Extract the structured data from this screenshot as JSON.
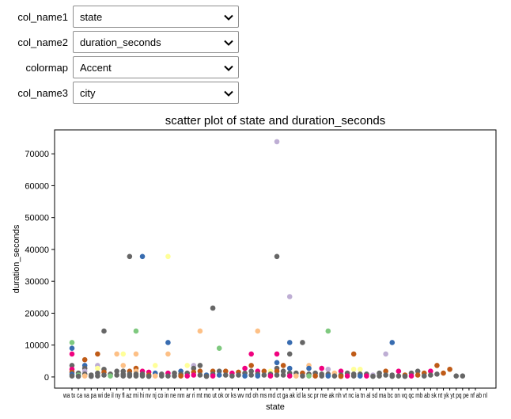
{
  "controls": [
    {
      "label": "col_name1",
      "value": "state"
    },
    {
      "label": "col_name2",
      "value": "duration_seconds"
    },
    {
      "label": "colormap",
      "value": "Accent"
    },
    {
      "label": "col_name3",
      "value": "city"
    }
  ],
  "chart_data": {
    "type": "scatter",
    "title": "scatter plot of state and duration_seconds",
    "xlabel": "state",
    "ylabel": "duration_seconds",
    "ylim": [
      -3500,
      77500
    ],
    "yticks": [
      0,
      10000,
      20000,
      30000,
      40000,
      50000,
      60000,
      70000
    ],
    "ytick_labels": [
      "0",
      "10000",
      "20000",
      "30000",
      "40000",
      "50000",
      "60000",
      "70000"
    ],
    "grid": false,
    "colormap": "Accent",
    "categories": [
      "wa",
      "tx",
      "ca",
      "va",
      "pa",
      "wi",
      "de",
      "il",
      "ny",
      "fl",
      "az",
      "mi",
      "hi",
      "nv",
      "nj",
      "co",
      "in",
      "ne",
      "nm",
      "ar",
      "ri",
      "mt",
      "mo",
      "ut",
      "ok",
      "or",
      "ks",
      "wv",
      "nd",
      "oh",
      "ms",
      "md",
      "ct",
      "ga",
      "ak",
      "id",
      "la",
      "sc",
      "pr",
      "me",
      "ak",
      "nh",
      "vt",
      "nc",
      "ia",
      "tn",
      "al",
      "sd",
      "ma",
      "bc",
      "on",
      "vq",
      "qc",
      "mb",
      "ab",
      "sk",
      "nt",
      "yk",
      "yt",
      "pq",
      "pe",
      "nf",
      "ab",
      "nl"
    ],
    "tick_text": "wa tx ca va pa wi de il ny fl az mi hi nv nj co in ne nm ar ri mt mo ut ok or ks wv nd oh ms md ct ga ak id la sc pr me ak nh vt nc ia tn al sd ma bc on vq qc mb ab sk nt yk yt pq pe nf ab nl",
    "points": [
      {
        "x": 0,
        "y": 10800,
        "c": "#7fc97f"
      },
      {
        "x": 0,
        "y": 9000,
        "c": "#386cb0"
      },
      {
        "x": 0,
        "y": 7200,
        "c": "#f0027f"
      },
      {
        "x": 0,
        "y": 3600,
        "c": "#666666"
      },
      {
        "x": 0,
        "y": 2400,
        "c": "#f0027f"
      },
      {
        "x": 0,
        "y": 1500,
        "c": "#bf5b17"
      },
      {
        "x": 0,
        "y": 900,
        "c": "#386cb0"
      },
      {
        "x": 0,
        "y": 300,
        "c": "#666666"
      },
      {
        "x": 1,
        "y": 1200,
        "c": "#666666"
      },
      {
        "x": 1,
        "y": 600,
        "c": "#7fc97f"
      },
      {
        "x": 1,
        "y": 200,
        "c": "#666666"
      },
      {
        "x": 2,
        "y": 5400,
        "c": "#bf5b17"
      },
      {
        "x": 2,
        "y": 3600,
        "c": "#386cb0"
      },
      {
        "x": 2,
        "y": 2700,
        "c": "#666666"
      },
      {
        "x": 2,
        "y": 1800,
        "c": "#beaed4"
      },
      {
        "x": 2,
        "y": 900,
        "c": "#666666"
      },
      {
        "x": 2,
        "y": 300,
        "c": "#fdc086"
      },
      {
        "x": 3,
        "y": 600,
        "c": "#666666"
      },
      {
        "x": 3,
        "y": 200,
        "c": "#666666"
      },
      {
        "x": 4,
        "y": 7200,
        "c": "#bf5b17"
      },
      {
        "x": 4,
        "y": 3600,
        "c": "#beaed4"
      },
      {
        "x": 4,
        "y": 2700,
        "c": "#ffff99"
      },
      {
        "x": 4,
        "y": 1200,
        "c": "#666666"
      },
      {
        "x": 4,
        "y": 300,
        "c": "#666666"
      },
      {
        "x": 5,
        "y": 14400,
        "c": "#666666"
      },
      {
        "x": 5,
        "y": 2400,
        "c": "#666666"
      },
      {
        "x": 5,
        "y": 1500,
        "c": "#bf5b17"
      },
      {
        "x": 5,
        "y": 600,
        "c": "#666666"
      },
      {
        "x": 6,
        "y": 900,
        "c": "#666666"
      },
      {
        "x": 6,
        "y": 300,
        "c": "#7fc97f"
      },
      {
        "x": 7,
        "y": 7200,
        "c": "#fdc086"
      },
      {
        "x": 7,
        "y": 1800,
        "c": "#666666"
      },
      {
        "x": 7,
        "y": 600,
        "c": "#666666"
      },
      {
        "x": 8,
        "y": 7200,
        "c": "#ffff99"
      },
      {
        "x": 8,
        "y": 3600,
        "c": "#fdc086"
      },
      {
        "x": 8,
        "y": 1800,
        "c": "#666666"
      },
      {
        "x": 8,
        "y": 900,
        "c": "#666666"
      },
      {
        "x": 8,
        "y": 300,
        "c": "#666666"
      },
      {
        "x": 9,
        "y": 37800,
        "c": "#666666"
      },
      {
        "x": 9,
        "y": 1800,
        "c": "#bf5b17"
      },
      {
        "x": 9,
        "y": 900,
        "c": "#666666"
      },
      {
        "x": 9,
        "y": 300,
        "c": "#666666"
      },
      {
        "x": 10,
        "y": 14400,
        "c": "#7fc97f"
      },
      {
        "x": 10,
        "y": 7200,
        "c": "#fdc086"
      },
      {
        "x": 10,
        "y": 2700,
        "c": "#bf5b17"
      },
      {
        "x": 10,
        "y": 1800,
        "c": "#fdc086"
      },
      {
        "x": 10,
        "y": 900,
        "c": "#666666"
      },
      {
        "x": 10,
        "y": 300,
        "c": "#666666"
      },
      {
        "x": 11,
        "y": 37800,
        "c": "#386cb0"
      },
      {
        "x": 11,
        "y": 1800,
        "c": "#f0027f"
      },
      {
        "x": 11,
        "y": 900,
        "c": "#666666"
      },
      {
        "x": 11,
        "y": 300,
        "c": "#666666"
      },
      {
        "x": 12,
        "y": 1500,
        "c": "#f0027f"
      },
      {
        "x": 12,
        "y": 600,
        "c": "#bf5b17"
      },
      {
        "x": 12,
        "y": 200,
        "c": "#666666"
      },
      {
        "x": 13,
        "y": 3600,
        "c": "#ffff99"
      },
      {
        "x": 13,
        "y": 1200,
        "c": "#386cb0"
      },
      {
        "x": 13,
        "y": 300,
        "c": "#fdc086"
      },
      {
        "x": 14,
        "y": 900,
        "c": "#666666"
      },
      {
        "x": 14,
        "y": 300,
        "c": "#666666"
      },
      {
        "x": 15,
        "y": 37800,
        "c": "#ffff99"
      },
      {
        "x": 15,
        "y": 10800,
        "c": "#386cb0"
      },
      {
        "x": 15,
        "y": 7200,
        "c": "#fdc086"
      },
      {
        "x": 15,
        "y": 1200,
        "c": "#f0027f"
      },
      {
        "x": 15,
        "y": 300,
        "c": "#666666"
      },
      {
        "x": 16,
        "y": 1200,
        "c": "#666666"
      },
      {
        "x": 16,
        "y": 300,
        "c": "#666666"
      },
      {
        "x": 17,
        "y": 1800,
        "c": "#386cb0"
      },
      {
        "x": 17,
        "y": 900,
        "c": "#666666"
      },
      {
        "x": 17,
        "y": 300,
        "c": "#bf5b17"
      },
      {
        "x": 18,
        "y": 3600,
        "c": "#ffff99"
      },
      {
        "x": 18,
        "y": 1200,
        "c": "#666666"
      },
      {
        "x": 18,
        "y": 300,
        "c": "#f0027f"
      },
      {
        "x": 19,
        "y": 3600,
        "c": "#beaed4"
      },
      {
        "x": 19,
        "y": 2700,
        "c": "#666666"
      },
      {
        "x": 19,
        "y": 1500,
        "c": "#bf5b17"
      },
      {
        "x": 19,
        "y": 600,
        "c": "#f0027f"
      },
      {
        "x": 20,
        "y": 14400,
        "c": "#fdc086"
      },
      {
        "x": 20,
        "y": 3600,
        "c": "#666666"
      },
      {
        "x": 20,
        "y": 1800,
        "c": "#bf5b17"
      },
      {
        "x": 20,
        "y": 600,
        "c": "#666666"
      },
      {
        "x": 21,
        "y": 600,
        "c": "#386cb0"
      },
      {
        "x": 21,
        "y": 200,
        "c": "#666666"
      },
      {
        "x": 22,
        "y": 21600,
        "c": "#666666"
      },
      {
        "x": 22,
        "y": 1800,
        "c": "#bf5b17"
      },
      {
        "x": 22,
        "y": 900,
        "c": "#666666"
      },
      {
        "x": 22,
        "y": 300,
        "c": "#f0027f"
      },
      {
        "x": 23,
        "y": 9000,
        "c": "#7fc97f"
      },
      {
        "x": 23,
        "y": 1800,
        "c": "#666666"
      },
      {
        "x": 23,
        "y": 600,
        "c": "#386cb0"
      },
      {
        "x": 24,
        "y": 1800,
        "c": "#bf5b17"
      },
      {
        "x": 24,
        "y": 600,
        "c": "#666666"
      },
      {
        "x": 25,
        "y": 1200,
        "c": "#f0027f"
      },
      {
        "x": 25,
        "y": 300,
        "c": "#666666"
      },
      {
        "x": 26,
        "y": 1500,
        "c": "#bf5b17"
      },
      {
        "x": 26,
        "y": 600,
        "c": "#666666"
      },
      {
        "x": 27,
        "y": 2700,
        "c": "#f0027f"
      },
      {
        "x": 27,
        "y": 1200,
        "c": "#666666"
      },
      {
        "x": 27,
        "y": 300,
        "c": "#386cb0"
      },
      {
        "x": 28,
        "y": 7200,
        "c": "#f0027f"
      },
      {
        "x": 28,
        "y": 3600,
        "c": "#bf5b17"
      },
      {
        "x": 28,
        "y": 1800,
        "c": "#666666"
      },
      {
        "x": 28,
        "y": 600,
        "c": "#666666"
      },
      {
        "x": 29,
        "y": 14400,
        "c": "#fdc086"
      },
      {
        "x": 29,
        "y": 1800,
        "c": "#f0027f"
      },
      {
        "x": 29,
        "y": 900,
        "c": "#666666"
      },
      {
        "x": 29,
        "y": 300,
        "c": "#386cb0"
      },
      {
        "x": 30,
        "y": 1800,
        "c": "#bf5b17"
      },
      {
        "x": 30,
        "y": 600,
        "c": "#666666"
      },
      {
        "x": 31,
        "y": 1800,
        "c": "#ffff99"
      },
      {
        "x": 31,
        "y": 900,
        "c": "#666666"
      },
      {
        "x": 31,
        "y": 300,
        "c": "#f0027f"
      },
      {
        "x": 32,
        "y": 73800,
        "c": "#beaed4"
      },
      {
        "x": 32,
        "y": 37800,
        "c": "#666666"
      },
      {
        "x": 32,
        "y": 7200,
        "c": "#f0027f"
      },
      {
        "x": 32,
        "y": 4500,
        "c": "#386cb0"
      },
      {
        "x": 32,
        "y": 2700,
        "c": "#666666"
      },
      {
        "x": 32,
        "y": 1800,
        "c": "#bf5b17"
      },
      {
        "x": 32,
        "y": 600,
        "c": "#666666"
      },
      {
        "x": 33,
        "y": 3600,
        "c": "#bf5b17"
      },
      {
        "x": 33,
        "y": 1800,
        "c": "#666666"
      },
      {
        "x": 33,
        "y": 600,
        "c": "#666666"
      },
      {
        "x": 34,
        "y": 25200,
        "c": "#beaed4"
      },
      {
        "x": 34,
        "y": 10800,
        "c": "#386cb0"
      },
      {
        "x": 34,
        "y": 7200,
        "c": "#666666"
      },
      {
        "x": 34,
        "y": 2700,
        "c": "#386cb0"
      },
      {
        "x": 34,
        "y": 1200,
        "c": "#666666"
      },
      {
        "x": 34,
        "y": 300,
        "c": "#f0027f"
      },
      {
        "x": 35,
        "y": 1200,
        "c": "#666666"
      },
      {
        "x": 35,
        "y": 300,
        "c": "#fdc086"
      },
      {
        "x": 36,
        "y": 10800,
        "c": "#666666"
      },
      {
        "x": 36,
        "y": 1200,
        "c": "#bf5b17"
      },
      {
        "x": 36,
        "y": 300,
        "c": "#666666"
      },
      {
        "x": 37,
        "y": 3600,
        "c": "#fdc086"
      },
      {
        "x": 37,
        "y": 2700,
        "c": "#386cb0"
      },
      {
        "x": 37,
        "y": 900,
        "c": "#666666"
      },
      {
        "x": 37,
        "y": 300,
        "c": "#7fc97f"
      },
      {
        "x": 38,
        "y": 1200,
        "c": "#666666"
      },
      {
        "x": 38,
        "y": 300,
        "c": "#bf5b17"
      },
      {
        "x": 39,
        "y": 2700,
        "c": "#f0027f"
      },
      {
        "x": 39,
        "y": 900,
        "c": "#666666"
      },
      {
        "x": 39,
        "y": 300,
        "c": "#666666"
      },
      {
        "x": 40,
        "y": 14400,
        "c": "#7fc97f"
      },
      {
        "x": 40,
        "y": 2400,
        "c": "#beaed4"
      },
      {
        "x": 40,
        "y": 900,
        "c": "#666666"
      },
      {
        "x": 40,
        "y": 300,
        "c": "#386cb0"
      },
      {
        "x": 41,
        "y": 1200,
        "c": "#fdc086"
      },
      {
        "x": 41,
        "y": 300,
        "c": "#666666"
      },
      {
        "x": 42,
        "y": 1800,
        "c": "#f0027f"
      },
      {
        "x": 42,
        "y": 600,
        "c": "#666666"
      },
      {
        "x": 42,
        "y": 200,
        "c": "#bf5b17"
      },
      {
        "x": 43,
        "y": 1200,
        "c": "#666666"
      },
      {
        "x": 43,
        "y": 300,
        "c": "#f0027f"
      },
      {
        "x": 44,
        "y": 7200,
        "c": "#bf5b17"
      },
      {
        "x": 44,
        "y": 2400,
        "c": "#ffff99"
      },
      {
        "x": 44,
        "y": 900,
        "c": "#666666"
      },
      {
        "x": 44,
        "y": 300,
        "c": "#666666"
      },
      {
        "x": 45,
        "y": 2400,
        "c": "#ffff99"
      },
      {
        "x": 45,
        "y": 900,
        "c": "#666666"
      },
      {
        "x": 45,
        "y": 300,
        "c": "#386cb0"
      },
      {
        "x": 46,
        "y": 900,
        "c": "#666666"
      },
      {
        "x": 46,
        "y": 300,
        "c": "#f0027f"
      },
      {
        "x": 47,
        "y": 600,
        "c": "#beaed4"
      },
      {
        "x": 47,
        "y": 200,
        "c": "#666666"
      },
      {
        "x": 48,
        "y": 1200,
        "c": "#666666"
      },
      {
        "x": 48,
        "y": 300,
        "c": "#666666"
      },
      {
        "x": 49,
        "y": 7200,
        "c": "#beaed4"
      },
      {
        "x": 49,
        "y": 1800,
        "c": "#bf5b17"
      },
      {
        "x": 49,
        "y": 600,
        "c": "#666666"
      },
      {
        "x": 50,
        "y": 10800,
        "c": "#386cb0"
      },
      {
        "x": 50,
        "y": 600,
        "c": "#666666"
      },
      {
        "x": 50,
        "y": 200,
        "c": "#666666"
      },
      {
        "x": 51,
        "y": 1800,
        "c": "#f0027f"
      },
      {
        "x": 51,
        "y": 300,
        "c": "#666666"
      },
      {
        "x": 52,
        "y": 600,
        "c": "#bf5b17"
      },
      {
        "x": 52,
        "y": 200,
        "c": "#666666"
      },
      {
        "x": 53,
        "y": 1200,
        "c": "#666666"
      },
      {
        "x": 53,
        "y": 300,
        "c": "#f0027f"
      },
      {
        "x": 54,
        "y": 1800,
        "c": "#666666"
      },
      {
        "x": 54,
        "y": 600,
        "c": "#bf5b17"
      },
      {
        "x": 55,
        "y": 1200,
        "c": "#bf5b17"
      },
      {
        "x": 55,
        "y": 300,
        "c": "#666666"
      },
      {
        "x": 56,
        "y": 1800,
        "c": "#f0027f"
      },
      {
        "x": 56,
        "y": 600,
        "c": "#666666"
      },
      {
        "x": 57,
        "y": 3600,
        "c": "#bf5b17"
      },
      {
        "x": 57,
        "y": 900,
        "c": "#666666"
      },
      {
        "x": 58,
        "y": 1200,
        "c": "#bf5b17"
      },
      {
        "x": 59,
        "y": 2400,
        "c": "#bf5b17"
      },
      {
        "x": 60,
        "y": 300,
        "c": "#666666"
      },
      {
        "x": 61,
        "y": 300,
        "c": "#666666"
      }
    ]
  }
}
